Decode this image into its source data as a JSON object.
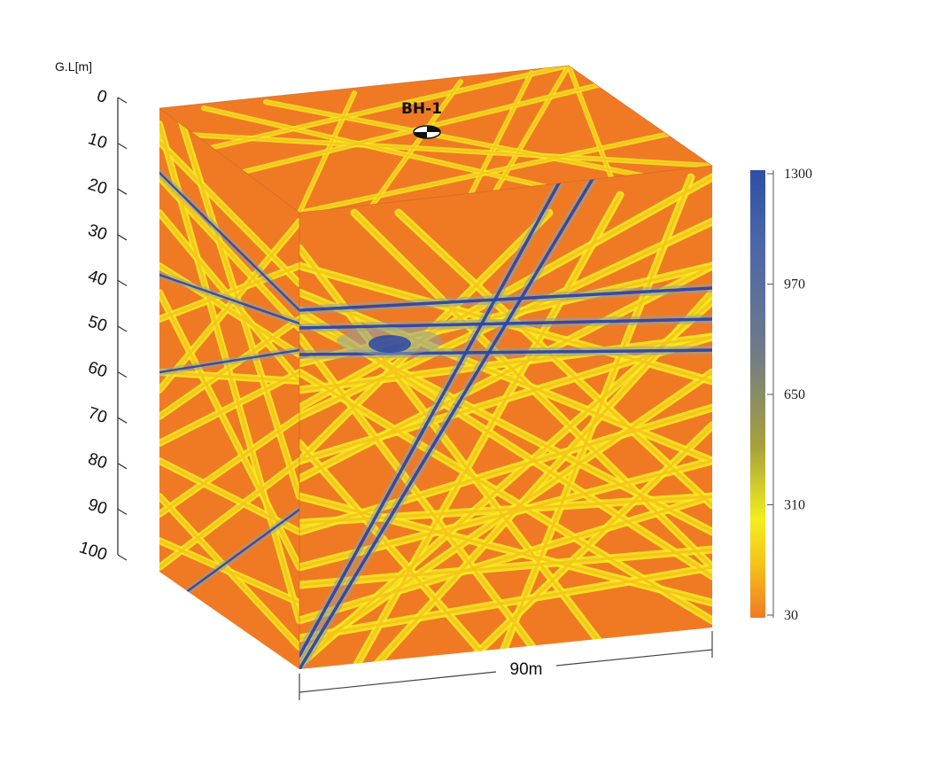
{
  "depth_axis": {
    "unit_label": "G.L[m]",
    "ticks": [
      "0",
      "10",
      "20",
      "30",
      "40",
      "50",
      "60",
      "70",
      "80",
      "90",
      "100"
    ]
  },
  "borehole": {
    "label": "BH-1"
  },
  "width_dimension": {
    "label": "90m"
  },
  "colorbar": {
    "ticks": [
      "1300",
      "970",
      "650",
      "310",
      "30"
    ],
    "colors": [
      "#2f4ea6",
      "#4b66a8",
      "#6e7a8a",
      "#a8a23a",
      "#f2ef1c",
      "#f5c21a",
      "#f07a23"
    ]
  },
  "cube_colors": {
    "background": "#f07a23",
    "ray_high": "#f4ee20",
    "ray_mid": "#f7c21c",
    "anomaly": "#2c46a6",
    "anomaly_halo": "#8fa0a0"
  }
}
